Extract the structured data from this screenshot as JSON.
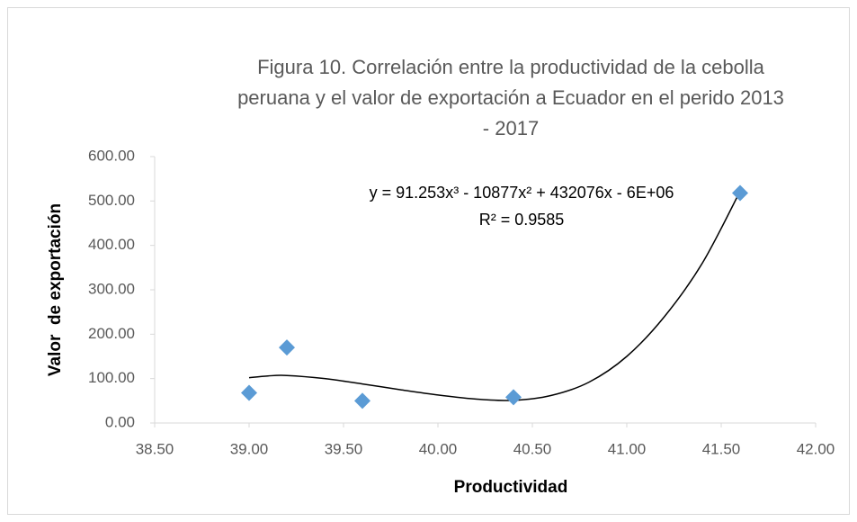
{
  "chart_data": {
    "type": "scatter",
    "title": "Figura 10. Correlación entre la productividad de la cebolla peruana y el valor de exportación a Ecuador en el perido 2013 - 2017",
    "xlabel": "Productividad",
    "ylabel": "Valor  de exportación",
    "x": [
      39.0,
      39.2,
      39.6,
      40.4,
      41.6
    ],
    "values": [
      68,
      170,
      50,
      58,
      518
    ],
    "color": "#5b9bd5",
    "xlim": [
      38.5,
      42.0
    ],
    "xticks": [
      {
        "value": 38.5,
        "label": "38.50"
      },
      {
        "value": 39.0,
        "label": "39.00"
      },
      {
        "value": 39.5,
        "label": "39.50"
      },
      {
        "value": 40.0,
        "label": "40.00"
      },
      {
        "value": 40.5,
        "label": "40.50"
      },
      {
        "value": 41.0,
        "label": "41.00"
      },
      {
        "value": 41.5,
        "label": "41.50"
      },
      {
        "value": 42.0,
        "label": "42.00"
      }
    ],
    "ylim": [
      0,
      600
    ],
    "yticks": [
      {
        "value": 0,
        "label": "0.00"
      },
      {
        "value": 100,
        "label": "100.00"
      },
      {
        "value": 200,
        "label": "200.00"
      },
      {
        "value": 300,
        "label": "300.00"
      },
      {
        "value": 400,
        "label": "400.00"
      },
      {
        "value": 500,
        "label": "500.00"
      },
      {
        "value": 600,
        "label": "600.00"
      }
    ],
    "grid": false,
    "trendline": {
      "x": [
        39.0,
        39.1,
        39.2,
        39.4,
        39.6,
        39.8,
        40.0,
        40.2,
        40.4,
        40.6,
        40.8,
        41.0,
        41.2,
        41.4,
        41.6
      ],
      "y": [
        102,
        106,
        107,
        100,
        88,
        75,
        63,
        54,
        51,
        62,
        92,
        150,
        240,
        360,
        522
      ],
      "equation": "y = 91.253x³ - 10877x² + 432076x - 6E+06",
      "r_squared": "R² = 0.9585"
    }
  }
}
